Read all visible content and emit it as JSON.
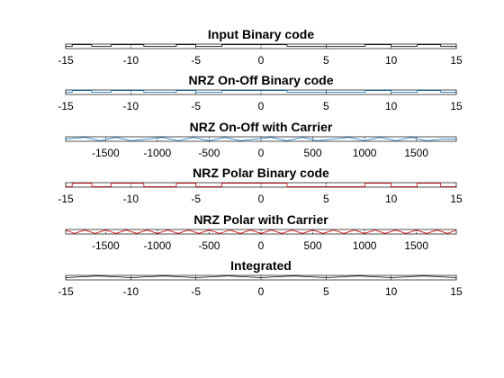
{
  "figure": {
    "background": "#ffffff"
  },
  "chart_data": [
    {
      "type": "line",
      "title": "Input Binary code",
      "xlim": [
        -15,
        15
      ],
      "xticks": [
        -15,
        -10,
        -5,
        0,
        5,
        10,
        15
      ],
      "color": "#000000",
      "series": [
        {
          "x": [
            -15,
            -14.5,
            -14.5,
            -13,
            -13,
            -11.5,
            -11.5,
            -9,
            -9,
            -6.5,
            -6.5,
            -5,
            -5,
            -3,
            -3,
            2,
            2,
            8,
            8,
            10,
            10,
            12,
            12,
            13.8,
            13.8,
            15
          ],
          "values": [
            0,
            0,
            1,
            1,
            0,
            0,
            1,
            1,
            0,
            0,
            1,
            1,
            0,
            0,
            1,
            1,
            0,
            0,
            1,
            1,
            0,
            0,
            1,
            1,
            0,
            0
          ]
        }
      ]
    },
    {
      "type": "line",
      "title": "NRZ On-Off Binary code",
      "xlim": [
        -15,
        15
      ],
      "xticks": [
        -15,
        -10,
        -5,
        0,
        5,
        10,
        15
      ],
      "color": "#0072bd",
      "series": [
        {
          "x": [
            -15,
            -14.5,
            -14.5,
            -13,
            -13,
            -11.5,
            -11.5,
            -9,
            -9,
            -6.5,
            -6.5,
            -5,
            -5,
            -3,
            -3,
            2,
            2,
            8,
            8,
            10,
            10,
            12,
            12,
            13.8,
            13.8,
            15
          ],
          "values": [
            0,
            0,
            1,
            1,
            0,
            0,
            1,
            1,
            0,
            0,
            1,
            1,
            0,
            0,
            1,
            1,
            0,
            0,
            1,
            1,
            0,
            0,
            1,
            1,
            0,
            0
          ]
        }
      ]
    },
    {
      "type": "line",
      "title": "NRZ On-Off with Carrier",
      "xlim": [
        -1885,
        1885
      ],
      "xticks": [
        -1500,
        -1000,
        -500,
        0,
        500,
        1000,
        1500
      ],
      "color": "#0072bd",
      "series": [
        {
          "x": [
            -1885,
            -1700,
            -1550,
            -1400,
            -1250,
            -1100,
            -950,
            -800,
            -650,
            -500,
            -350,
            -200,
            -50,
            100,
            250,
            400,
            550,
            700,
            850,
            1000,
            1150,
            1300,
            1450,
            1600,
            1750,
            1885
          ],
          "values": [
            0,
            1,
            -1,
            1,
            -1,
            0,
            1,
            -1,
            1,
            -1,
            1,
            -1,
            0,
            1,
            -1,
            1,
            -1,
            0,
            1,
            -1,
            1,
            -1,
            1,
            -1,
            0,
            0
          ]
        }
      ]
    },
    {
      "type": "line",
      "title": "NRZ Polar Binary code",
      "xlim": [
        -15,
        15
      ],
      "xticks": [
        -15,
        -10,
        -5,
        0,
        5,
        10,
        15
      ],
      "color": "#d00000",
      "series": [
        {
          "x": [
            -15,
            -14.5,
            -14.5,
            -13,
            -13,
            -11.5,
            -11.5,
            -9,
            -9,
            -6.5,
            -6.5,
            -5,
            -5,
            -3,
            -3,
            2,
            2,
            8,
            8,
            10,
            10,
            12,
            12,
            13.8,
            13.8,
            15
          ],
          "values": [
            -1,
            -1,
            1,
            1,
            -1,
            -1,
            1,
            1,
            -1,
            -1,
            1,
            1,
            -1,
            -1,
            1,
            1,
            -1,
            -1,
            1,
            1,
            -1,
            -1,
            1,
            1,
            -1,
            -1
          ]
        }
      ]
    },
    {
      "type": "line",
      "title": "NRZ Polar with Carrier",
      "xlim": [
        -1885,
        1885
      ],
      "xticks": [
        -1500,
        -1000,
        -500,
        0,
        500,
        1000,
        1500
      ],
      "color": "#d00000",
      "series": [
        {
          "x": [
            -1885,
            -1800,
            -1700,
            -1600,
            -1500,
            -1400,
            -1300,
            -1200,
            -1100,
            -1000,
            -900,
            -800,
            -700,
            -600,
            -500,
            -400,
            -300,
            -200,
            -100,
            0,
            100,
            200,
            300,
            400,
            500,
            600,
            700,
            800,
            900,
            1000,
            1100,
            1200,
            1300,
            1400,
            1500,
            1600,
            1700,
            1800,
            1885
          ],
          "values": [
            1,
            -1,
            1,
            -1,
            1,
            -1,
            1,
            -1,
            1,
            -1,
            1,
            -1,
            1,
            -1,
            1,
            -1,
            1,
            -1,
            1,
            -1,
            1,
            -1,
            1,
            -1,
            1,
            -1,
            1,
            -1,
            1,
            -1,
            1,
            -1,
            1,
            -1,
            1,
            -1,
            1,
            -1,
            1
          ]
        }
      ]
    },
    {
      "type": "line",
      "title": "Integrated",
      "xlim": [
        -15,
        15
      ],
      "xticks": [
        -15,
        -10,
        -5,
        0,
        5,
        10,
        15
      ],
      "color": "#000000",
      "series": [
        {
          "x": [
            -15,
            -12.5,
            -10,
            -7.5,
            -5,
            -2.5,
            0,
            2.5,
            5,
            7.5,
            10,
            12.5,
            15
          ],
          "values": [
            0,
            1,
            0,
            1,
            0,
            1,
            0,
            1,
            0,
            1,
            0,
            1,
            0
          ]
        }
      ]
    }
  ]
}
